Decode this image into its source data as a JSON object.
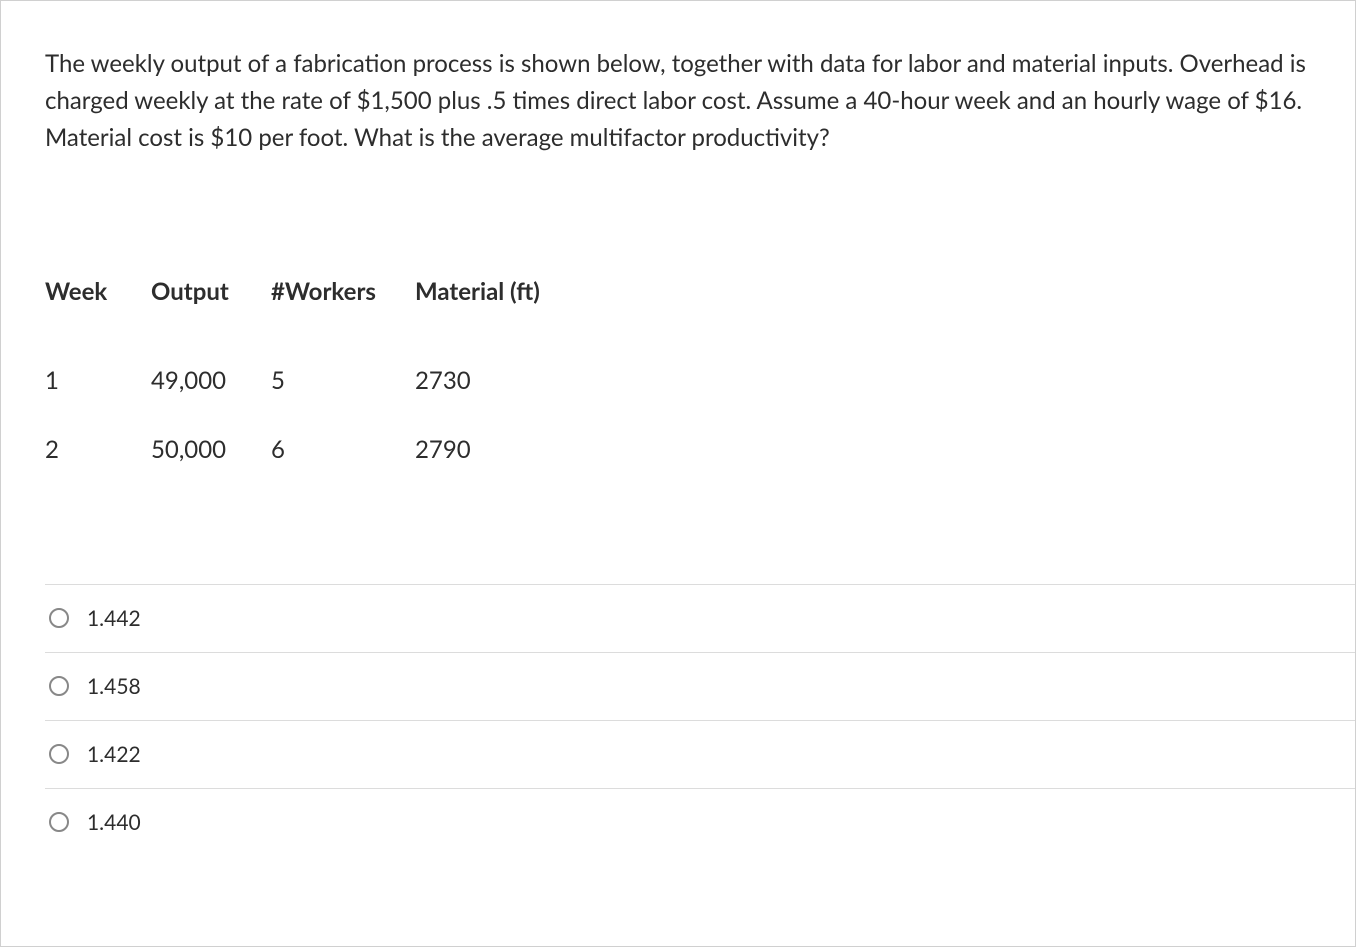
{
  "question": {
    "text": "The weekly output of a fabrication process is shown below, together with data for labor and material inputs. Overhead is charged weekly at the rate of $1,500 plus .5 times direct labor cost. Assume a 40-hour week and an hourly wage of $16. Material cost is $10 per foot. What is the average multifactor productivity?"
  },
  "table": {
    "headers": {
      "week": "Week",
      "output": "Output",
      "workers": "#Workers",
      "material": "Material (ft)"
    },
    "rows": [
      {
        "week": "1",
        "output": "49,000",
        "workers": "5",
        "material": "2730"
      },
      {
        "week": "2",
        "output": "50,000",
        "workers": "6",
        "material": "2790"
      }
    ]
  },
  "options": [
    {
      "label": "1.442"
    },
    {
      "label": "1.458"
    },
    {
      "label": "1.422"
    },
    {
      "label": "1.440"
    }
  ],
  "style": {
    "text_color": "#2d2d2d",
    "border_color": "#d0d0d0",
    "divider_color": "#dcdcdc",
    "radio_border": "#888888",
    "background": "#ffffff",
    "question_fontsize": 24,
    "table_fontsize": 24,
    "option_fontsize": 21
  }
}
